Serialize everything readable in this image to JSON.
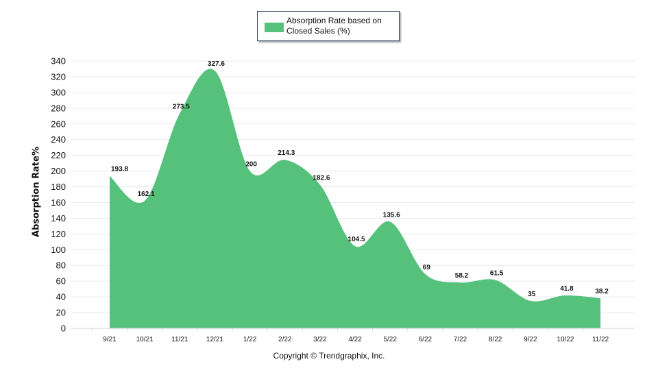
{
  "chart_data": {
    "type": "area",
    "title": "",
    "xlabel": "",
    "ylabel": "Absorption Rate%",
    "ylim": [
      0,
      340
    ],
    "yticks": [
      0,
      20,
      40,
      60,
      80,
      100,
      120,
      140,
      160,
      180,
      200,
      220,
      240,
      260,
      280,
      300,
      320,
      340
    ],
    "grid": true,
    "legend_position": "top-center",
    "categories": [
      "9/21",
      "10/21",
      "11/21",
      "12/21",
      "1/22",
      "2/22",
      "3/22",
      "4/22",
      "5/22",
      "6/22",
      "7/22",
      "8/22",
      "9/22",
      "10/22",
      "11/22"
    ],
    "series": [
      {
        "name": "Absorption Rate based on Closed Sales (%)",
        "color": "#55c17b",
        "values": [
          193.8,
          162.1,
          273.5,
          327.6,
          200,
          214.3,
          182.6,
          104.5,
          135.6,
          69,
          58.2,
          61.5,
          35,
          41.8,
          38.2
        ],
        "labels": [
          "193.8",
          "162.1",
          "273.5",
          "327.6",
          "200",
          "214.3",
          "182.6",
          "104.5",
          "135.6",
          "69",
          "58.2",
          "61.5",
          "35",
          "41.8",
          "38.2"
        ]
      }
    ]
  },
  "legend": {
    "label": "Absorption Rate based on Closed Sales (%)",
    "color": "#55c17b"
  },
  "footer": {
    "copyright": "Copyright © Trendgraphix, Inc."
  }
}
